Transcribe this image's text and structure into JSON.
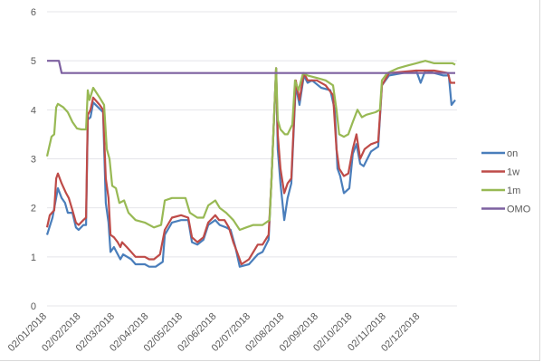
{
  "chart_data": {
    "type": "line",
    "title": "",
    "xlabel": "",
    "ylabel": "",
    "ylim": [
      0,
      6
    ],
    "yticks": [
      "0",
      "1",
      "2",
      "3",
      "4",
      "5",
      "6"
    ],
    "x_unit": "months since 02/01/2018",
    "xticks": [
      "02/01/2018",
      "02/02/2018",
      "02/03/2018",
      "02/04/2018",
      "02/05/2018",
      "02/06/2018",
      "02/07/2018",
      "02/08/2018",
      "02/09/2018",
      "02/10/2018",
      "02/11/2018",
      "02/12/2018"
    ],
    "xlim": [
      0,
      12.03
    ],
    "grid": true,
    "legend_position": "right",
    "series": [
      {
        "name": "on",
        "color": "#4a7ebb",
        "points": [
          [
            0,
            1.45
          ],
          [
            0.16,
            1.8
          ],
          [
            0.32,
            2.4
          ],
          [
            0.43,
            2.2
          ],
          [
            0.53,
            2.1
          ],
          [
            0.61,
            1.9
          ],
          [
            0.75,
            1.9
          ],
          [
            0.85,
            1.6
          ],
          [
            0.93,
            1.55
          ],
          [
            1.07,
            1.65
          ],
          [
            1.15,
            1.65
          ],
          [
            1.2,
            3.8
          ],
          [
            1.28,
            3.85
          ],
          [
            1.36,
            4.15
          ],
          [
            1.65,
            3.95
          ],
          [
            1.73,
            2.1
          ],
          [
            1.81,
            1.7
          ],
          [
            1.87,
            1.1
          ],
          [
            1.97,
            1.2
          ],
          [
            2.16,
            0.95
          ],
          [
            2.24,
            1.05
          ],
          [
            2.48,
            0.95
          ],
          [
            2.61,
            0.85
          ],
          [
            2.88,
            0.85
          ],
          [
            3.01,
            0.8
          ],
          [
            3.2,
            0.8
          ],
          [
            3.41,
            0.9
          ],
          [
            3.47,
            1.45
          ],
          [
            3.68,
            1.7
          ],
          [
            3.95,
            1.75
          ],
          [
            4.16,
            1.75
          ],
          [
            4.27,
            1.3
          ],
          [
            4.43,
            1.25
          ],
          [
            4.61,
            1.35
          ],
          [
            4.75,
            1.65
          ],
          [
            4.96,
            1.75
          ],
          [
            5.09,
            1.65
          ],
          [
            5.28,
            1.6
          ],
          [
            5.41,
            1.55
          ],
          [
            5.55,
            1.2
          ],
          [
            5.68,
            0.8
          ],
          [
            5.95,
            0.85
          ],
          [
            6.21,
            1.05
          ],
          [
            6.35,
            1.1
          ],
          [
            6.53,
            1.35
          ],
          [
            6.61,
            2.5
          ],
          [
            6.75,
            4.85
          ],
          [
            6.8,
            3.2
          ],
          [
            6.88,
            2.5
          ],
          [
            6.99,
            1.75
          ],
          [
            7.09,
            2.2
          ],
          [
            7.2,
            2.5
          ],
          [
            7.33,
            4.5
          ],
          [
            7.44,
            4.1
          ],
          [
            7.57,
            4.7
          ],
          [
            7.68,
            4.55
          ],
          [
            7.81,
            4.6
          ],
          [
            8.08,
            4.45
          ],
          [
            8.35,
            4.4
          ],
          [
            8.48,
            4.0
          ],
          [
            8.56,
            2.8
          ],
          [
            8.64,
            2.65
          ],
          [
            8.75,
            2.3
          ],
          [
            8.91,
            2.4
          ],
          [
            9.01,
            3.1
          ],
          [
            9.12,
            3.3
          ],
          [
            9.23,
            2.9
          ],
          [
            9.33,
            2.85
          ],
          [
            9.55,
            3.15
          ],
          [
            9.76,
            3.25
          ],
          [
            9.87,
            4.5
          ],
          [
            10.08,
            4.7
          ],
          [
            10.88,
            4.8
          ],
          [
            11.01,
            4.55
          ],
          [
            11.15,
            4.8
          ],
          [
            11.68,
            4.7
          ],
          [
            11.84,
            4.7
          ],
          [
            11.92,
            4.1
          ],
          [
            12.03,
            4.2
          ]
        ]
      },
      {
        "name": "1w",
        "color": "#be4b48",
        "points": [
          [
            0,
            1.6
          ],
          [
            0.08,
            1.85
          ],
          [
            0.21,
            1.95
          ],
          [
            0.27,
            2.6
          ],
          [
            0.32,
            2.7
          ],
          [
            0.43,
            2.5
          ],
          [
            0.56,
            2.3
          ],
          [
            0.64,
            2.2
          ],
          [
            0.75,
            1.95
          ],
          [
            0.85,
            1.7
          ],
          [
            0.93,
            1.65
          ],
          [
            1.07,
            1.75
          ],
          [
            1.15,
            1.8
          ],
          [
            1.2,
            3.9
          ],
          [
            1.28,
            4.0
          ],
          [
            1.36,
            4.25
          ],
          [
            1.55,
            4.1
          ],
          [
            1.65,
            4.0
          ],
          [
            1.73,
            2.6
          ],
          [
            1.81,
            2.2
          ],
          [
            1.87,
            1.45
          ],
          [
            1.97,
            1.4
          ],
          [
            2.08,
            1.3
          ],
          [
            2.16,
            1.2
          ],
          [
            2.21,
            1.3
          ],
          [
            2.35,
            1.2
          ],
          [
            2.61,
            1.0
          ],
          [
            2.88,
            1.0
          ],
          [
            3.01,
            0.95
          ],
          [
            3.15,
            0.95
          ],
          [
            3.33,
            1.05
          ],
          [
            3.47,
            1.55
          ],
          [
            3.68,
            1.8
          ],
          [
            3.95,
            1.85
          ],
          [
            4.16,
            1.8
          ],
          [
            4.27,
            1.4
          ],
          [
            4.43,
            1.3
          ],
          [
            4.61,
            1.4
          ],
          [
            4.75,
            1.7
          ],
          [
            4.96,
            1.85
          ],
          [
            5.07,
            1.75
          ],
          [
            5.23,
            1.75
          ],
          [
            5.36,
            1.6
          ],
          [
            5.49,
            1.3
          ],
          [
            5.6,
            1.1
          ],
          [
            5.73,
            0.85
          ],
          [
            5.95,
            0.95
          ],
          [
            6.21,
            1.25
          ],
          [
            6.35,
            1.25
          ],
          [
            6.53,
            1.45
          ],
          [
            6.61,
            2.5
          ],
          [
            6.75,
            4.85
          ],
          [
            6.8,
            3.5
          ],
          [
            6.88,
            2.8
          ],
          [
            6.99,
            2.3
          ],
          [
            7.09,
            2.5
          ],
          [
            7.2,
            2.6
          ],
          [
            7.33,
            4.6
          ],
          [
            7.44,
            4.2
          ],
          [
            7.57,
            4.75
          ],
          [
            7.68,
            4.6
          ],
          [
            7.95,
            4.6
          ],
          [
            8.21,
            4.5
          ],
          [
            8.43,
            4.3
          ],
          [
            8.53,
            3.2
          ],
          [
            8.61,
            2.8
          ],
          [
            8.75,
            2.65
          ],
          [
            8.88,
            2.7
          ],
          [
            9.01,
            3.2
          ],
          [
            9.12,
            3.5
          ],
          [
            9.23,
            3.0
          ],
          [
            9.36,
            3.2
          ],
          [
            9.55,
            3.3
          ],
          [
            9.76,
            3.35
          ],
          [
            9.87,
            4.5
          ],
          [
            10.08,
            4.75
          ],
          [
            10.88,
            4.8
          ],
          [
            11.41,
            4.8
          ],
          [
            11.81,
            4.75
          ],
          [
            11.89,
            4.55
          ],
          [
            12.03,
            4.55
          ]
        ]
      },
      {
        "name": "1m",
        "color": "#98b954",
        "points": [
          [
            0,
            3.05
          ],
          [
            0.13,
            3.45
          ],
          [
            0.21,
            3.5
          ],
          [
            0.27,
            4.05
          ],
          [
            0.32,
            4.12
          ],
          [
            0.48,
            4.05
          ],
          [
            0.61,
            3.95
          ],
          [
            0.75,
            3.75
          ],
          [
            0.88,
            3.62
          ],
          [
            1.01,
            3.6
          ],
          [
            1.15,
            3.6
          ],
          [
            1.2,
            4.4
          ],
          [
            1.25,
            4.2
          ],
          [
            1.36,
            4.45
          ],
          [
            1.55,
            4.25
          ],
          [
            1.68,
            4.1
          ],
          [
            1.76,
            3.2
          ],
          [
            1.84,
            3.0
          ],
          [
            1.92,
            2.45
          ],
          [
            2.03,
            2.4
          ],
          [
            2.13,
            2.1
          ],
          [
            2.27,
            2.15
          ],
          [
            2.4,
            1.9
          ],
          [
            2.61,
            1.75
          ],
          [
            2.88,
            1.7
          ],
          [
            3.15,
            1.6
          ],
          [
            3.36,
            1.65
          ],
          [
            3.47,
            2.15
          ],
          [
            3.68,
            2.2
          ],
          [
            3.95,
            2.2
          ],
          [
            4.08,
            2.2
          ],
          [
            4.21,
            1.9
          ],
          [
            4.43,
            1.8
          ],
          [
            4.61,
            1.8
          ],
          [
            4.75,
            2.05
          ],
          [
            4.96,
            2.15
          ],
          [
            5.09,
            2.0
          ],
          [
            5.28,
            1.9
          ],
          [
            5.49,
            1.75
          ],
          [
            5.68,
            1.55
          ],
          [
            5.87,
            1.6
          ],
          [
            6.08,
            1.65
          ],
          [
            6.35,
            1.65
          ],
          [
            6.56,
            1.75
          ],
          [
            6.61,
            2.5
          ],
          [
            6.75,
            4.85
          ],
          [
            6.8,
            3.8
          ],
          [
            6.88,
            3.6
          ],
          [
            7.01,
            3.5
          ],
          [
            7.09,
            3.5
          ],
          [
            7.23,
            3.7
          ],
          [
            7.31,
            4.6
          ],
          [
            7.41,
            4.4
          ],
          [
            7.55,
            4.75
          ],
          [
            7.68,
            4.7
          ],
          [
            7.95,
            4.65
          ],
          [
            8.21,
            4.6
          ],
          [
            8.43,
            4.5
          ],
          [
            8.53,
            4.0
          ],
          [
            8.61,
            3.5
          ],
          [
            8.75,
            3.45
          ],
          [
            8.88,
            3.5
          ],
          [
            9.01,
            3.75
          ],
          [
            9.15,
            4.0
          ],
          [
            9.28,
            3.85
          ],
          [
            9.41,
            3.9
          ],
          [
            9.68,
            3.95
          ],
          [
            9.81,
            4.0
          ],
          [
            9.87,
            4.6
          ],
          [
            10.03,
            4.75
          ],
          [
            10.35,
            4.85
          ],
          [
            10.61,
            4.9
          ],
          [
            10.88,
            4.95
          ],
          [
            11.15,
            5.0
          ],
          [
            11.41,
            4.95
          ],
          [
            11.68,
            4.95
          ],
          [
            11.95,
            4.95
          ],
          [
            12.03,
            4.92
          ]
        ]
      },
      {
        "name": "OMO",
        "color": "#7d60a0",
        "points": [
          [
            0,
            5.0
          ],
          [
            0.35,
            5.0
          ],
          [
            0.43,
            4.75
          ],
          [
            12.03,
            4.75
          ]
        ]
      }
    ]
  }
}
